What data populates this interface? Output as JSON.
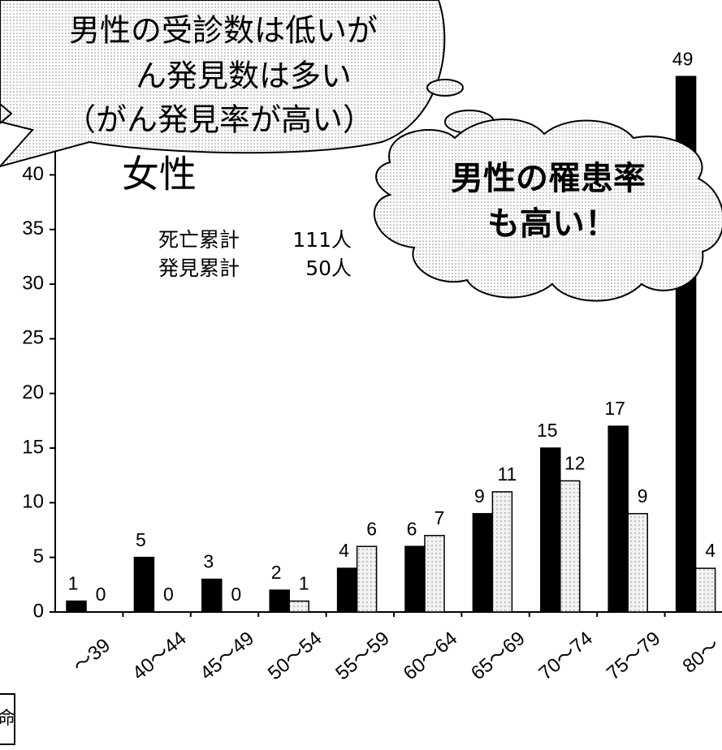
{
  "chart_data": {
    "type": "bar",
    "title": "女性",
    "speech_bubble": [
      "男性の受診数は低いが",
      "ん発見数は多い",
      "（がん発見率が高い）"
    ],
    "cloud": [
      "男性の罹患率",
      "も高い！"
    ],
    "notes": [
      {
        "label": "死亡累計",
        "value": "111人"
      },
      {
        "label": "発見累計",
        "value": "50人"
      }
    ],
    "side_label": "命",
    "categories": [
      "～39",
      "40～44",
      "45～49",
      "50～54",
      "55～59",
      "60～64",
      "65～69",
      "70～74",
      "75～79",
      "80～"
    ],
    "series": [
      {
        "color": "#000000",
        "values": [
          1,
          5,
          3,
          2,
          4,
          6,
          9,
          15,
          17,
          49
        ]
      },
      {
        "color": "#f2f2f2",
        "values": [
          0,
          0,
          0,
          1,
          6,
          7,
          11,
          12,
          9,
          4
        ]
      }
    ],
    "ylim": [
      0,
      56
    ],
    "yticks": [
      0,
      5,
      10,
      15,
      20,
      25,
      30,
      35,
      40
    ],
    "grid": false
  }
}
